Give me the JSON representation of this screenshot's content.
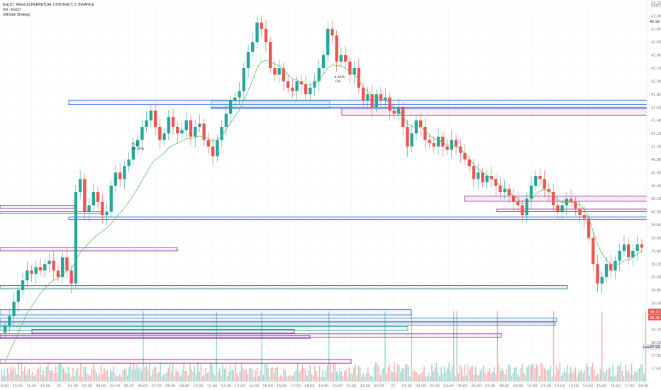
{
  "header": {
    "symbol_line": "EGLD / TetherUS PERPETUAL CONTRACT, 5, BINANCE",
    "volume_line": "Vol · EGLD",
    "strategy_line": "Ultimate Strategy"
  },
  "chart_data": {
    "type": "candlestick",
    "title": "EGLD / TetherUS PERPETUAL CONTRACT, 5, BINANCE",
    "currency_label": "USDT",
    "ylim": [
      37.4,
      43.2
    ],
    "y_ticks": [
      "43.20",
      "43.00",
      "42.80",
      "42.60",
      "42.40",
      "42.20",
      "42.00",
      "41.80",
      "41.60",
      "41.40",
      "41.20",
      "41.00",
      "40.80",
      "40.60",
      "40.40",
      "40.20",
      "40.00",
      "39.80",
      "39.60",
      "39.40",
      "39.20",
      "39.00",
      "38.80",
      "38.60",
      "38.40",
      "38.20",
      "38.00",
      "37.80",
      "37.60"
    ],
    "x_ticks": [
      "19:00",
      "20:00",
      "21:00",
      "22:00",
      "21",
      "01:00",
      "02:00",
      "03:00",
      "04:00",
      "05:00",
      "06:00",
      "07:00",
      "08:00",
      "09:00",
      "10:00",
      "11:00",
      "12:00",
      "13:00",
      "14:00",
      "15:00",
      "16:00",
      "17:00",
      "18:00",
      "19:00",
      "20:00",
      "21:00",
      "22:00",
      "23:00",
      "22",
      "01:00",
      "02:00",
      "03:00",
      "04:00",
      "05:00",
      "06:00",
      "07:00",
      "08:00",
      "09:00",
      "10:00",
      "11:00",
      "12:00",
      "13:00",
      "14:00",
      "15:00",
      "16:00",
      "17:00",
      "18:00"
    ],
    "price_badges": [
      {
        "label": "42.92",
        "value": 42.92,
        "color": "#131722",
        "bg": "#ffffff"
      },
      {
        "label": "38.47",
        "value": 38.47,
        "color": "#ffffff",
        "bg": "#ef5350"
      },
      {
        "label": "38.38",
        "value": 38.38,
        "color": "#ffffff",
        "bg": "#ef5350"
      },
      {
        "label": "37.93",
        "value": 37.93,
        "color": "#131722",
        "bg": "#e0e3eb",
        "tag": "Low"
      }
    ],
    "annotations": [
      {
        "text": "-4.30%",
        "text2": "(lo)",
        "x": 94,
        "y": 42.05
      },
      {
        "text": "TG2",
        "x": 37,
        "y": 41.02
      },
      {
        "text": "+4.30%",
        "x": 37,
        "y": 40.95
      }
    ],
    "close_series": [
      38.25,
      38.4,
      38.62,
      38.8,
      38.95,
      39.1,
      39.05,
      39.15,
      39.1,
      39.2,
      39.25,
      39.1,
      39.0,
      39.3,
      39.1,
      38.9,
      40.3,
      40.5,
      40.0,
      40.1,
      40.3,
      40.15,
      39.95,
      40.0,
      40.4,
      40.6,
      40.5,
      40.7,
      40.8,
      41.0,
      41.1,
      41.3,
      41.4,
      41.55,
      41.3,
      41.1,
      41.2,
      41.45,
      41.3,
      41.2,
      41.25,
      41.4,
      41.15,
      41.3,
      41.35,
      41.1,
      41.0,
      40.85,
      41.1,
      41.3,
      41.5,
      41.7,
      41.75,
      41.85,
      42.2,
      42.45,
      42.6,
      42.9,
      42.8,
      42.6,
      42.2,
      42.1,
      42.2,
      42.0,
      41.9,
      41.85,
      42.0,
      41.95,
      41.8,
      41.9,
      42.0,
      42.2,
      42.4,
      42.8,
      42.7,
      42.3,
      42.4,
      42.3,
      42.1,
      42.2,
      41.9,
      41.7,
      41.8,
      41.6,
      41.8,
      41.7,
      41.75,
      41.55,
      41.5,
      41.6,
      41.3,
      41.0,
      41.2,
      41.4,
      41.3,
      41.1,
      41.05,
      41.0,
      41.15,
      41.0,
      40.95,
      41.1,
      41.0,
      40.9,
      40.8,
      40.7,
      40.5,
      40.6,
      40.45,
      40.55,
      40.5,
      40.4,
      40.3,
      40.35,
      40.25,
      40.15,
      40.1,
      39.95,
      40.2,
      40.4,
      40.55,
      40.5,
      40.35,
      40.3,
      40.1,
      40.0,
      40.1,
      40.2,
      40.15,
      40.05,
      39.95,
      39.9,
      39.6,
      39.2,
      38.9,
      39.0,
      39.2,
      39.1,
      39.25,
      39.4,
      39.5,
      39.3,
      39.4,
      39.5,
      39.45
    ],
    "ma_series": [
      37.7,
      37.85,
      38.0,
      38.15,
      38.3,
      38.45,
      38.55,
      38.65,
      38.75,
      38.82,
      38.9,
      38.95,
      38.98,
      39.05,
      39.1,
      39.12,
      39.25,
      39.38,
      39.45,
      39.52,
      39.6,
      39.65,
      39.7,
      39.75,
      39.82,
      39.9,
      39.98,
      40.06,
      40.15,
      40.25,
      40.36,
      40.48,
      40.6,
      40.72,
      40.8,
      40.85,
      40.9,
      40.98,
      41.02,
      41.05,
      41.08,
      41.12,
      41.12,
      41.14,
      41.16,
      41.15,
      41.12,
      41.08,
      41.1,
      41.16,
      41.25,
      41.36,
      41.46,
      41.56,
      41.7,
      41.86,
      42.02,
      42.2,
      42.3,
      42.32,
      42.3,
      42.26,
      42.24,
      42.18,
      42.1,
      42.04,
      42.02,
      41.98,
      41.95,
      41.94,
      41.96,
      42.02,
      42.1,
      42.2,
      42.25,
      42.24,
      42.23,
      42.2,
      42.14,
      42.1,
      42.02,
      41.9,
      41.85,
      41.78,
      41.76,
      41.74,
      41.72,
      41.66,
      41.6,
      41.56,
      41.46,
      41.35,
      41.3,
      41.3,
      41.3,
      41.24,
      41.18,
      41.12,
      41.1,
      41.06,
      41.02,
      41.02,
      41.0,
      40.96,
      40.9,
      40.82,
      40.72,
      40.66,
      40.6,
      40.56,
      40.52,
      40.46,
      40.4,
      40.36,
      40.3,
      40.24,
      40.2,
      40.12,
      40.12,
      40.18,
      40.26,
      40.32,
      40.34,
      40.32,
      40.26,
      40.18,
      40.14,
      40.14,
      40.15,
      40.13,
      40.1,
      40.04,
      39.9,
      39.7,
      39.5,
      39.36,
      39.26,
      39.2,
      39.18,
      39.2,
      39.26,
      39.26,
      39.3,
      39.35,
      39.4
    ],
    "zones": [
      {
        "color": "#2962ff",
        "fill": "rgba(41,98,255,0.06)",
        "x0": 97,
        "x1": 916,
        "y0": 41.64,
        "y1": 41.71
      },
      {
        "color": "#7b1fa2",
        "fill": "rgba(233,30,99,0.08)",
        "x0": 482,
        "x1": 916,
        "y0": 41.48,
        "y1": 41.58
      },
      {
        "color": "#66bb6a",
        "fill": "rgba(102,187,106,0.12)",
        "x0": 298,
        "x1": 465,
        "y0": 41.58,
        "y1": 41.7
      },
      {
        "color": "#2962ff",
        "fill": "rgba(41,98,255,0.05)",
        "x0": 298,
        "x1": 916,
        "y0": 41.58,
        "y1": 41.6
      },
      {
        "color": "#7b1fa2",
        "fill": "rgba(233,30,99,0.08)",
        "x0": 655,
        "x1": 916,
        "y0": 40.16,
        "y1": 40.24
      },
      {
        "color": "#7b1fa2",
        "fill": "rgba(233,30,99,0.06)",
        "x0": 0,
        "x1": 105,
        "y0": 40.05,
        "y1": 40.1
      },
      {
        "color": "#7b1fa2",
        "fill": "rgba(233,30,99,0.06)",
        "x0": 700,
        "x1": 916,
        "y0": 40.0,
        "y1": 40.04
      },
      {
        "color": "#2962ff",
        "fill": "rgba(41,98,255,0.06)",
        "x0": 0,
        "x1": 145,
        "y0": 39.97,
        "y1": 40.0
      },
      {
        "color": "#2962ff",
        "fill": "rgba(41,98,255,0.05)",
        "x0": 97,
        "x1": 916,
        "y0": 39.88,
        "y1": 39.92
      },
      {
        "color": "#7b1fa2",
        "fill": "rgba(233,30,99,0.05)",
        "x0": 0,
        "x1": 250,
        "y0": 39.4,
        "y1": 39.45
      },
      {
        "color": "#006064",
        "fill": "rgba(0,150,136,0.08)",
        "x0": 0,
        "x1": 800,
        "y0": 38.82,
        "y1": 38.87
      },
      {
        "color": "#1565c0",
        "fill": "rgba(41,98,255,0.05)",
        "x0": 0,
        "x1": 580,
        "y0": 38.42,
        "y1": 38.5
      },
      {
        "color": "#1565c0",
        "fill": "rgba(41,98,255,0.05)",
        "x0": 0,
        "x1": 785,
        "y0": 38.32,
        "y1": 38.37
      },
      {
        "color": "#1565c0",
        "fill": "rgba(41,98,255,0.05)",
        "x0": 0,
        "x1": 783,
        "y0": 38.26,
        "y1": 38.3
      },
      {
        "color": "#26a69a",
        "fill": "rgba(38,166,154,0.08)",
        "x0": 0,
        "x1": 575,
        "y0": 38.18,
        "y1": 38.24
      },
      {
        "color": "#7b1fa2",
        "fill": "rgba(123,31,162,0.06)",
        "x0": 45,
        "x1": 415,
        "y0": 38.14,
        "y1": 38.2
      },
      {
        "color": "#7b1fa2",
        "fill": "rgba(123,31,162,0.06)",
        "x0": 0,
        "x1": 707,
        "y0": 38.08,
        "y1": 38.13
      },
      {
        "color": "#7b1fa2",
        "fill": "rgba(123,31,162,0.06)",
        "x0": 0,
        "x1": 437,
        "y0": 38.06,
        "y1": 38.1
      },
      {
        "color": "#7b1fa2",
        "fill": "rgba(123,31,162,0.06)",
        "x0": 0,
        "x1": 495,
        "y0": 37.68,
        "y1": 37.74
      }
    ],
    "colors": {
      "up": "#26a69a",
      "down": "#ef5350",
      "ma": "#66bb6a",
      "grid": "#f0f3fa",
      "axis_text": "#787b86"
    }
  }
}
